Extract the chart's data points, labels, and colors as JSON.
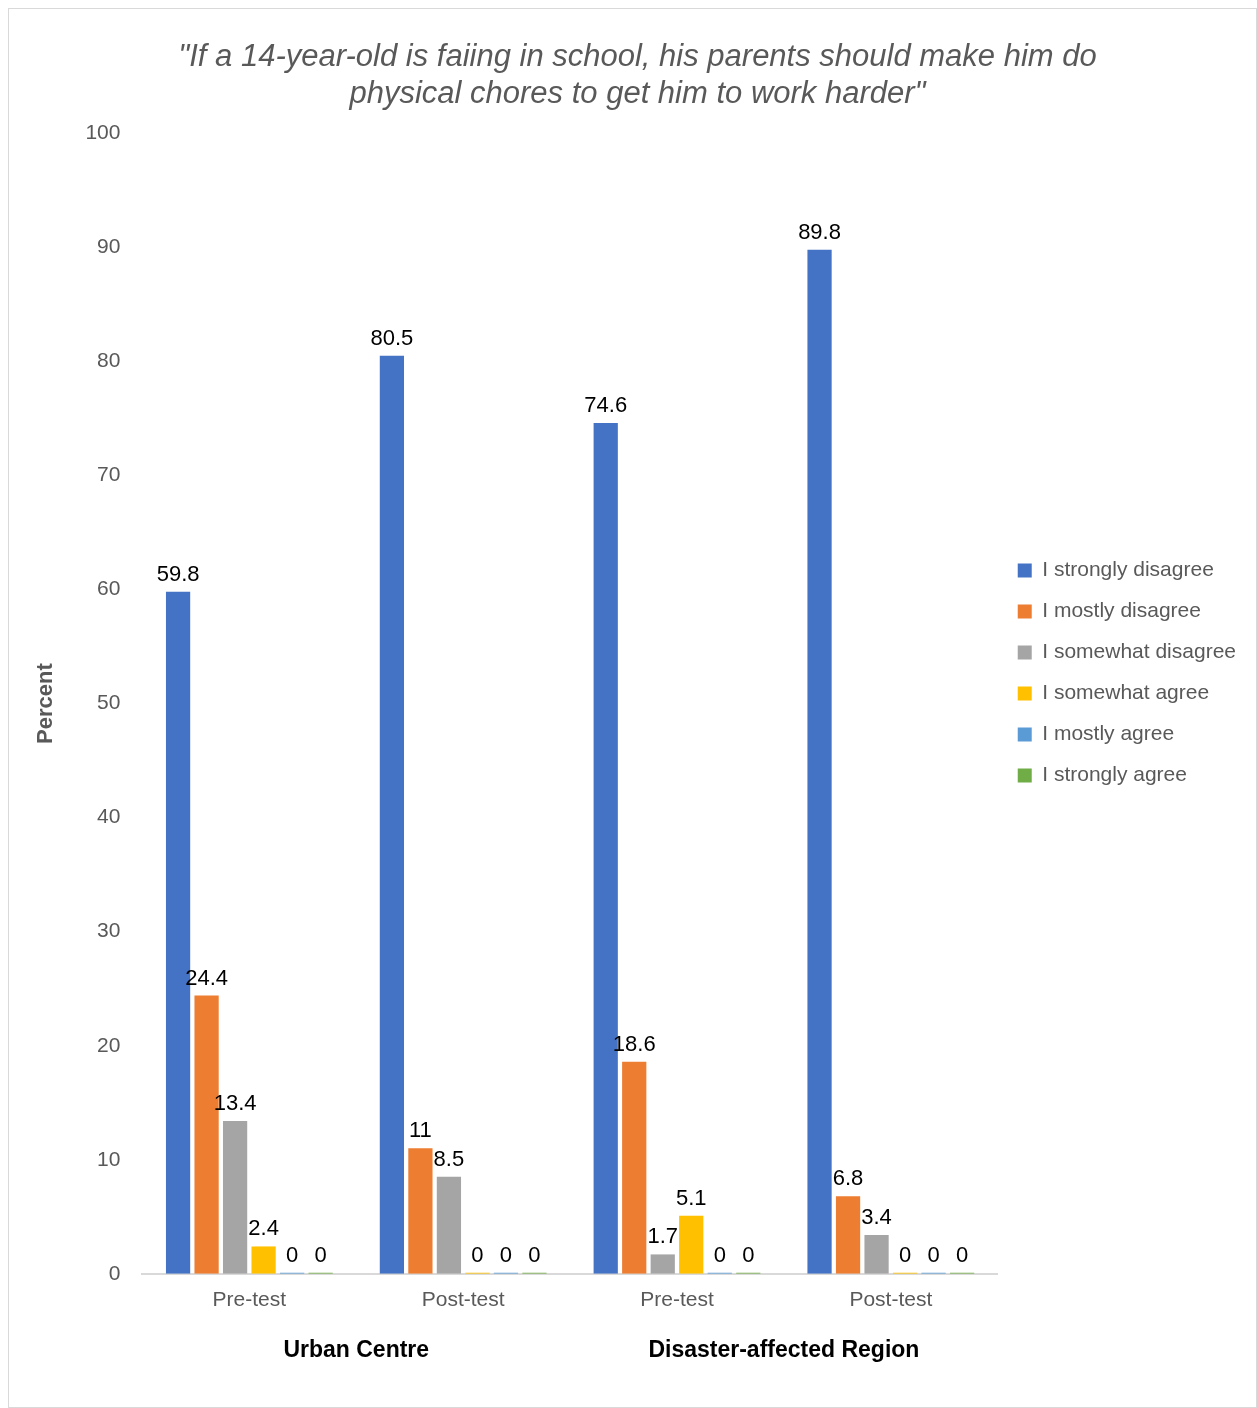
{
  "chart_data": {
    "type": "bar",
    "title": "\"If a 14-year-old is faiing in school, his parents should make him do physical chores to get him to work harder\"",
    "ylabel": "Percent",
    "categories": [
      "Pre-test",
      "Post-test",
      "Pre-test",
      "Post-test"
    ],
    "series": [
      {
        "name": "I strongly disagree",
        "color": "#4472c4",
        "values": [
          59.8,
          80.5,
          74.6,
          89.8
        ]
      },
      {
        "name": "I mostly disagree",
        "color": "#ed7d31",
        "values": [
          24.4,
          11,
          18.6,
          6.8
        ]
      },
      {
        "name": "I somewhat disagree",
        "color": "#a5a5a5",
        "values": [
          13.4,
          8.5,
          1.7,
          3.4
        ]
      },
      {
        "name": "I somewhat agree",
        "color": "#ffc000",
        "values": [
          2.4,
          0,
          5.1,
          0
        ]
      },
      {
        "name": "I mostly agree",
        "color": "#5b9bd5",
        "values": [
          0,
          0,
          0,
          0
        ]
      },
      {
        "name": "I strongly agree",
        "color": "#70ad47",
        "values": [
          0,
          0,
          0,
          0
        ]
      }
    ],
    "annotations": [
      "Urban Centre",
      "Disaster-affected Region"
    ],
    "ylim": [
      0,
      100
    ],
    "yticks": [
      0,
      10,
      20,
      30,
      40,
      50,
      60,
      70,
      80,
      90,
      100
    ],
    "grid": false,
    "legend": "right",
    "data_labels": true
  }
}
